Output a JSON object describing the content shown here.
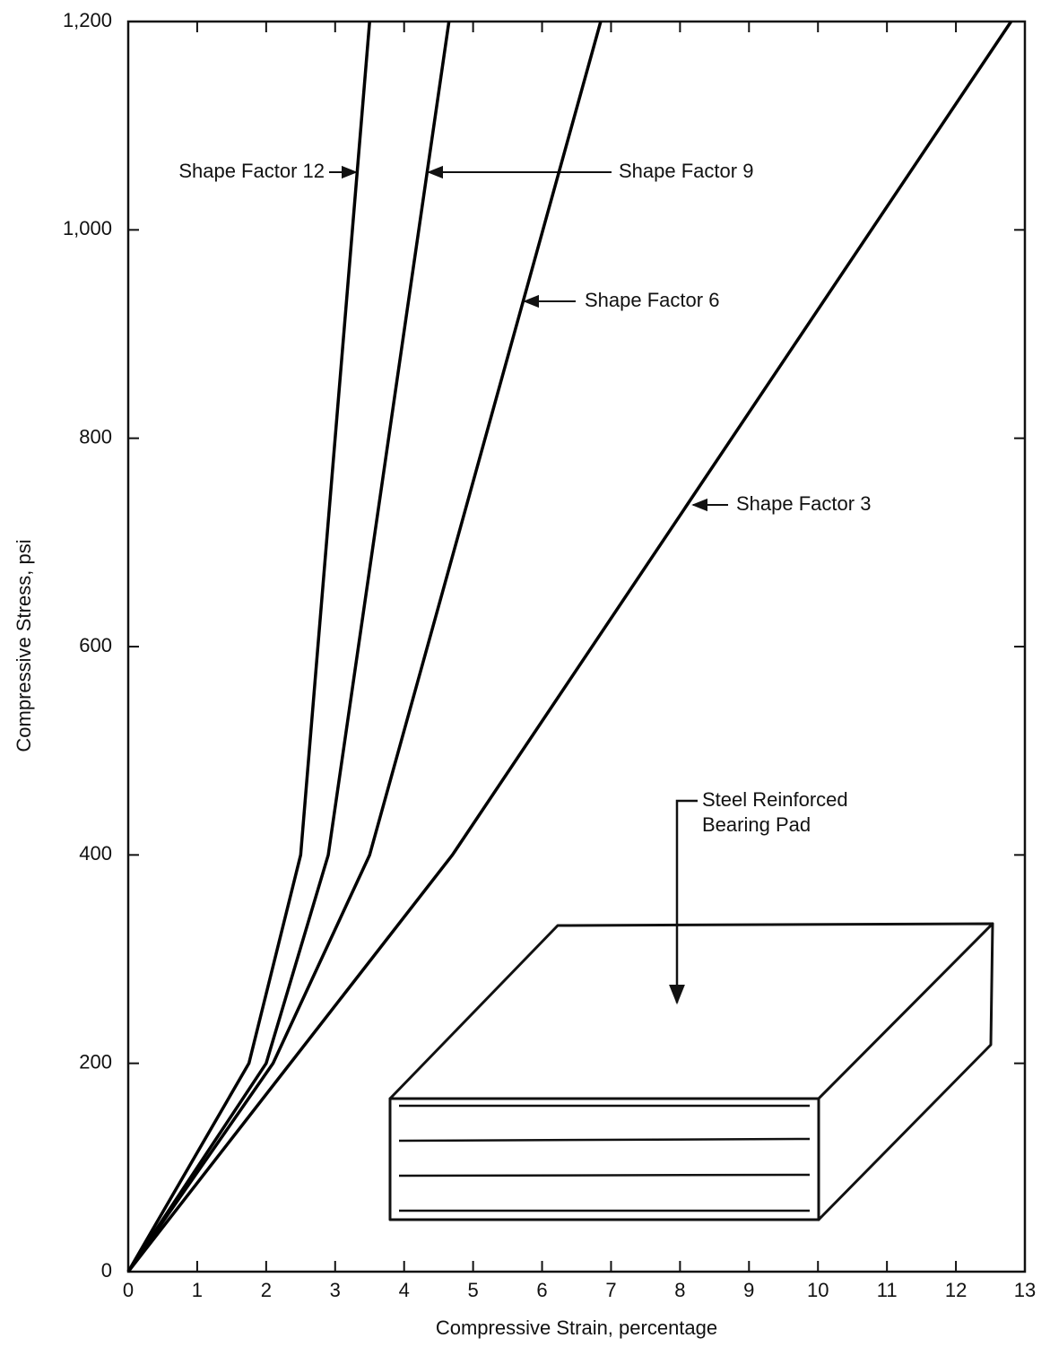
{
  "chart_data": {
    "type": "line",
    "x_label": "Compressive Strain, percentage",
    "y_label": "Compressive Stress, psi",
    "series": [
      {
        "name": "Shape Factor 12",
        "color": "#000000",
        "x": [
          0,
          1.75,
          2.5,
          3.5
        ],
        "values": [
          0,
          200,
          400,
          1200
        ]
      },
      {
        "name": "Shape Factor 9",
        "color": "#000000",
        "x": [
          0,
          2,
          2.9,
          4.65
        ],
        "values": [
          0,
          200,
          400,
          1200
        ]
      },
      {
        "name": "Shape Factor 6",
        "color": "#000000",
        "x": [
          0,
          2.1,
          3.5,
          6.85
        ],
        "values": [
          0,
          200,
          400,
          1200
        ]
      },
      {
        "name": "Shape Factor 3",
        "color": "#000000",
        "x": [
          0,
          4.7,
          12.8
        ],
        "values": [
          0,
          400,
          1200
        ]
      }
    ],
    "xlim": [
      0,
      13
    ],
    "xticks": [
      0,
      1,
      2,
      3,
      4,
      5,
      6,
      7,
      8,
      9,
      10,
      11,
      12,
      13
    ],
    "ylim": [
      0,
      1200
    ],
    "yticks": [
      0,
      200,
      400,
      600,
      800,
      {
        "value": 1000,
        "label": "1,000"
      },
      {
        "value": 1200,
        "label": "1,200"
      }
    ],
    "pad_label": [
      "Steel Reinforced",
      "Bearing Pad"
    ]
  }
}
